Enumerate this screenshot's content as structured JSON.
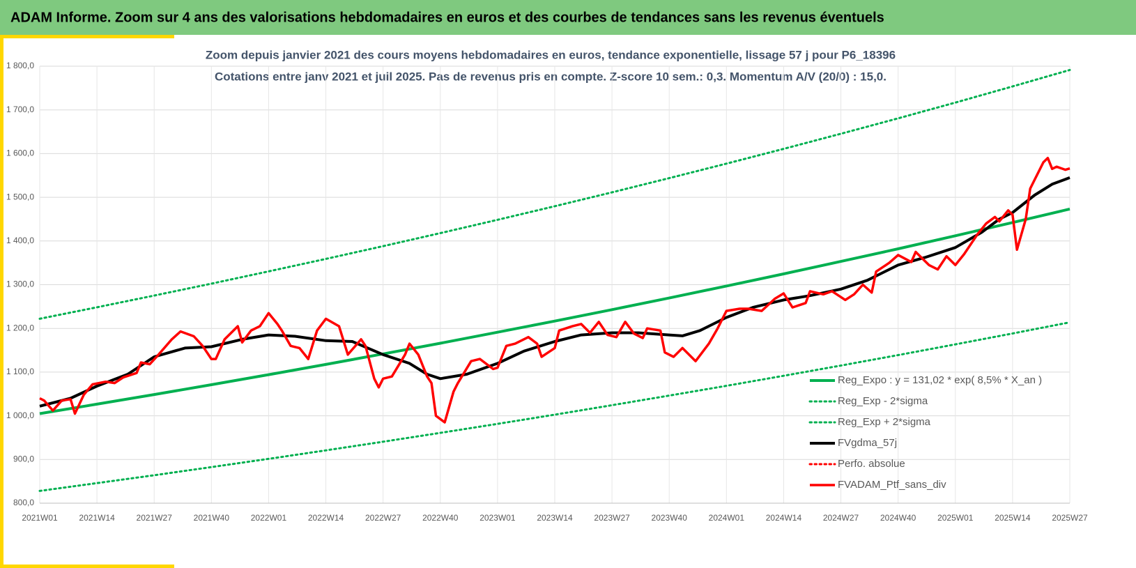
{
  "chart_data": {
    "type": "line",
    "title": "ADAM Informe. Zoom sur 4 ans des valorisations hebdomadaires en euros et des courbes de tendances sans les revenus éventuels",
    "subtitle": [
      "Zoom depuis janvier 2021 des cours moyens hebdomadaires  en euros, tendance exponentielle, lissage 57 j pour  P6_18396",
      "Cotations entre janv 2021 et juil 2025. Pas de revenus pris en compte. Z-score 10 sem.: 0,3. Momentum A/V (20/0) : 15,0."
    ],
    "xlim": [
      0,
      234
    ],
    "xticks": [
      {
        "value": 0,
        "label": "2021W01"
      },
      {
        "value": 13,
        "label": "2021W14"
      },
      {
        "value": 26,
        "label": "2021W27"
      },
      {
        "value": 39,
        "label": "2021W40"
      },
      {
        "value": 52,
        "label": "2022W01"
      },
      {
        "value": 65,
        "label": "2022W14"
      },
      {
        "value": 78,
        "label": "2022W27"
      },
      {
        "value": 91,
        "label": "2022W40"
      },
      {
        "value": 104,
        "label": "2023W01"
      },
      {
        "value": 117,
        "label": "2023W14"
      },
      {
        "value": 130,
        "label": "2023W27"
      },
      {
        "value": 143,
        "label": "2023W40"
      },
      {
        "value": 156,
        "label": "2024W01"
      },
      {
        "value": 169,
        "label": "2024W14"
      },
      {
        "value": 182,
        "label": "2024W27"
      },
      {
        "value": 195,
        "label": "2024W40"
      },
      {
        "value": 208,
        "label": "2025W01"
      },
      {
        "value": 221,
        "label": "2025W14"
      },
      {
        "value": 234,
        "label": "2025W27"
      }
    ],
    "ylim": [
      800,
      1800
    ],
    "yticks": [
      {
        "value": 800,
        "label": "800,0"
      },
      {
        "value": 900,
        "label": "900,0"
      },
      {
        "value": 1000,
        "label": "1 000,0"
      },
      {
        "value": 1100,
        "label": "1 100,0"
      },
      {
        "value": 1200,
        "label": "1 200,0"
      },
      {
        "value": 1300,
        "label": "1 300,0"
      },
      {
        "value": 1400,
        "label": "1 400,0"
      },
      {
        "value": 1500,
        "label": "1 500,0"
      },
      {
        "value": 1600,
        "label": "1 600,0"
      },
      {
        "value": 1700,
        "label": "1 700,0"
      },
      {
        "value": 1800,
        "label": "1 800,0"
      }
    ],
    "grid": true,
    "legend": "lower right",
    "series": [
      {
        "name": "Reg_Expo : y = 131,02 * exp( 8,5% *  X_an )",
        "color": "#00b050",
        "style": "solid",
        "x": [
          0,
          13,
          26,
          39,
          52,
          65,
          78,
          91,
          104,
          117,
          130,
          143,
          156,
          169,
          182,
          195,
          208,
          221,
          234
        ],
        "values": [
          1005,
          1026.6,
          1048.6,
          1071.1,
          1094.1,
          1117.6,
          1141.6,
          1166.1,
          1191.2,
          1216.8,
          1242.9,
          1269.6,
          1296.9,
          1324.7,
          1353.2,
          1382.2,
          1411.9,
          1442.2,
          1473.2
        ]
      },
      {
        "name": "Reg_Exp - 2*sigma",
        "color": "#00b050",
        "style": "dotted",
        "x": [
          0,
          13,
          26,
          39,
          52,
          65,
          78,
          91,
          104,
          117,
          130,
          143,
          156,
          169,
          182,
          195,
          208,
          221,
          234
        ],
        "values": [
          828,
          845.9,
          864,
          882.6,
          901.5,
          920.9,
          940.7,
          960.9,
          981.5,
          1002.6,
          1024.2,
          1046.2,
          1068.6,
          1091.6,
          1115,
          1138.9,
          1163.4,
          1188.4,
          1213.9
        ]
      },
      {
        "name": "Reg_Exp + 2*sigma",
        "color": "#00b050",
        "style": "dotted",
        "x": [
          0,
          13,
          26,
          39,
          52,
          65,
          78,
          91,
          104,
          117,
          130,
          143,
          156,
          169,
          182,
          195,
          208,
          221,
          234
        ],
        "values": [
          1222,
          1248.3,
          1275.1,
          1302.4,
          1330.4,
          1359,
          1388.2,
          1418,
          1448.5,
          1479.6,
          1511.4,
          1543.8,
          1577,
          1610.8,
          1645.5,
          1680.7,
          1716.8,
          1753.7,
          1791.4
        ]
      },
      {
        "name": "FVgdma_57j",
        "color": "#000000",
        "style": "solid",
        "x": [
          0,
          7,
          13,
          20,
          26,
          33,
          39,
          46,
          52,
          58,
          65,
          71,
          78,
          84,
          88,
          91,
          97,
          104,
          110,
          117,
          123,
          130,
          136,
          143,
          146,
          150,
          156,
          162,
          169,
          175,
          182,
          188,
          195,
          201,
          208,
          214,
          218,
          221,
          226,
          230,
          234
        ],
        "values": [
          1022,
          1040,
          1068,
          1095,
          1135,
          1155,
          1158,
          1175,
          1185,
          1182,
          1172,
          1170,
          1140,
          1120,
          1095,
          1085,
          1095,
          1120,
          1148,
          1170,
          1185,
          1190,
          1190,
          1185,
          1183,
          1195,
          1225,
          1248,
          1265,
          1275,
          1290,
          1310,
          1345,
          1362,
          1385,
          1420,
          1450,
          1465,
          1505,
          1530,
          1545
        ]
      },
      {
        "name": "Perfo. absolue",
        "color": "#ff0000",
        "style": "dotted"
      },
      {
        "name": "FVADAM_Ptf_sans_div",
        "color": "#ff0000",
        "style": "solid",
        "x": [
          0,
          1,
          3,
          5,
          7,
          8,
          10,
          12,
          15,
          17,
          19,
          22,
          23,
          25,
          27,
          30,
          32,
          35,
          37,
          39,
          40,
          42,
          45,
          46,
          48,
          50,
          52,
          54,
          55,
          57,
          59,
          61,
          63,
          65,
          68,
          70,
          73,
          74,
          76,
          77,
          78,
          80,
          83,
          84,
          86,
          88,
          89,
          90,
          92,
          94,
          95,
          98,
          100,
          103,
          104,
          106,
          108,
          111,
          113,
          114,
          117,
          118,
          121,
          123,
          125,
          127,
          129,
          131,
          133,
          135,
          137,
          138,
          141,
          142,
          144,
          146,
          149,
          152,
          154,
          156,
          159,
          161,
          164,
          167,
          169,
          171,
          174,
          175,
          178,
          180,
          183,
          185,
          187,
          189,
          190,
          193,
          195,
          198,
          199,
          202,
          204,
          206,
          208,
          210,
          213,
          215,
          217,
          218,
          220,
          221,
          222,
          224,
          225,
          226,
          228,
          229,
          230,
          231,
          233,
          234
        ],
        "values": [
          1040,
          1035,
          1012,
          1035,
          1038,
          1005,
          1048,
          1072,
          1078,
          1075,
          1088,
          1098,
          1122,
          1118,
          1140,
          1175,
          1193,
          1182,
          1160,
          1130,
          1130,
          1175,
          1205,
          1168,
          1195,
          1205,
          1235,
          1210,
          1195,
          1160,
          1155,
          1130,
          1195,
          1222,
          1205,
          1140,
          1175,
          1160,
          1085,
          1065,
          1085,
          1090,
          1140,
          1165,
          1140,
          1090,
          1075,
          1000,
          985,
          1055,
          1075,
          1125,
          1130,
          1107,
          1110,
          1160,
          1165,
          1180,
          1165,
          1135,
          1155,
          1195,
          1205,
          1210,
          1190,
          1215,
          1185,
          1180,
          1215,
          1188,
          1178,
          1200,
          1195,
          1145,
          1135,
          1155,
          1125,
          1165,
          1200,
          1240,
          1245,
          1245,
          1240,
          1268,
          1280,
          1248,
          1258,
          1285,
          1278,
          1285,
          1265,
          1278,
          1300,
          1282,
          1330,
          1350,
          1368,
          1352,
          1375,
          1345,
          1335,
          1365,
          1345,
          1370,
          1415,
          1440,
          1455,
          1445,
          1470,
          1460,
          1380,
          1450,
          1520,
          1540,
          1580,
          1590,
          1565,
          1570,
          1563,
          1566
        ]
      }
    ]
  }
}
